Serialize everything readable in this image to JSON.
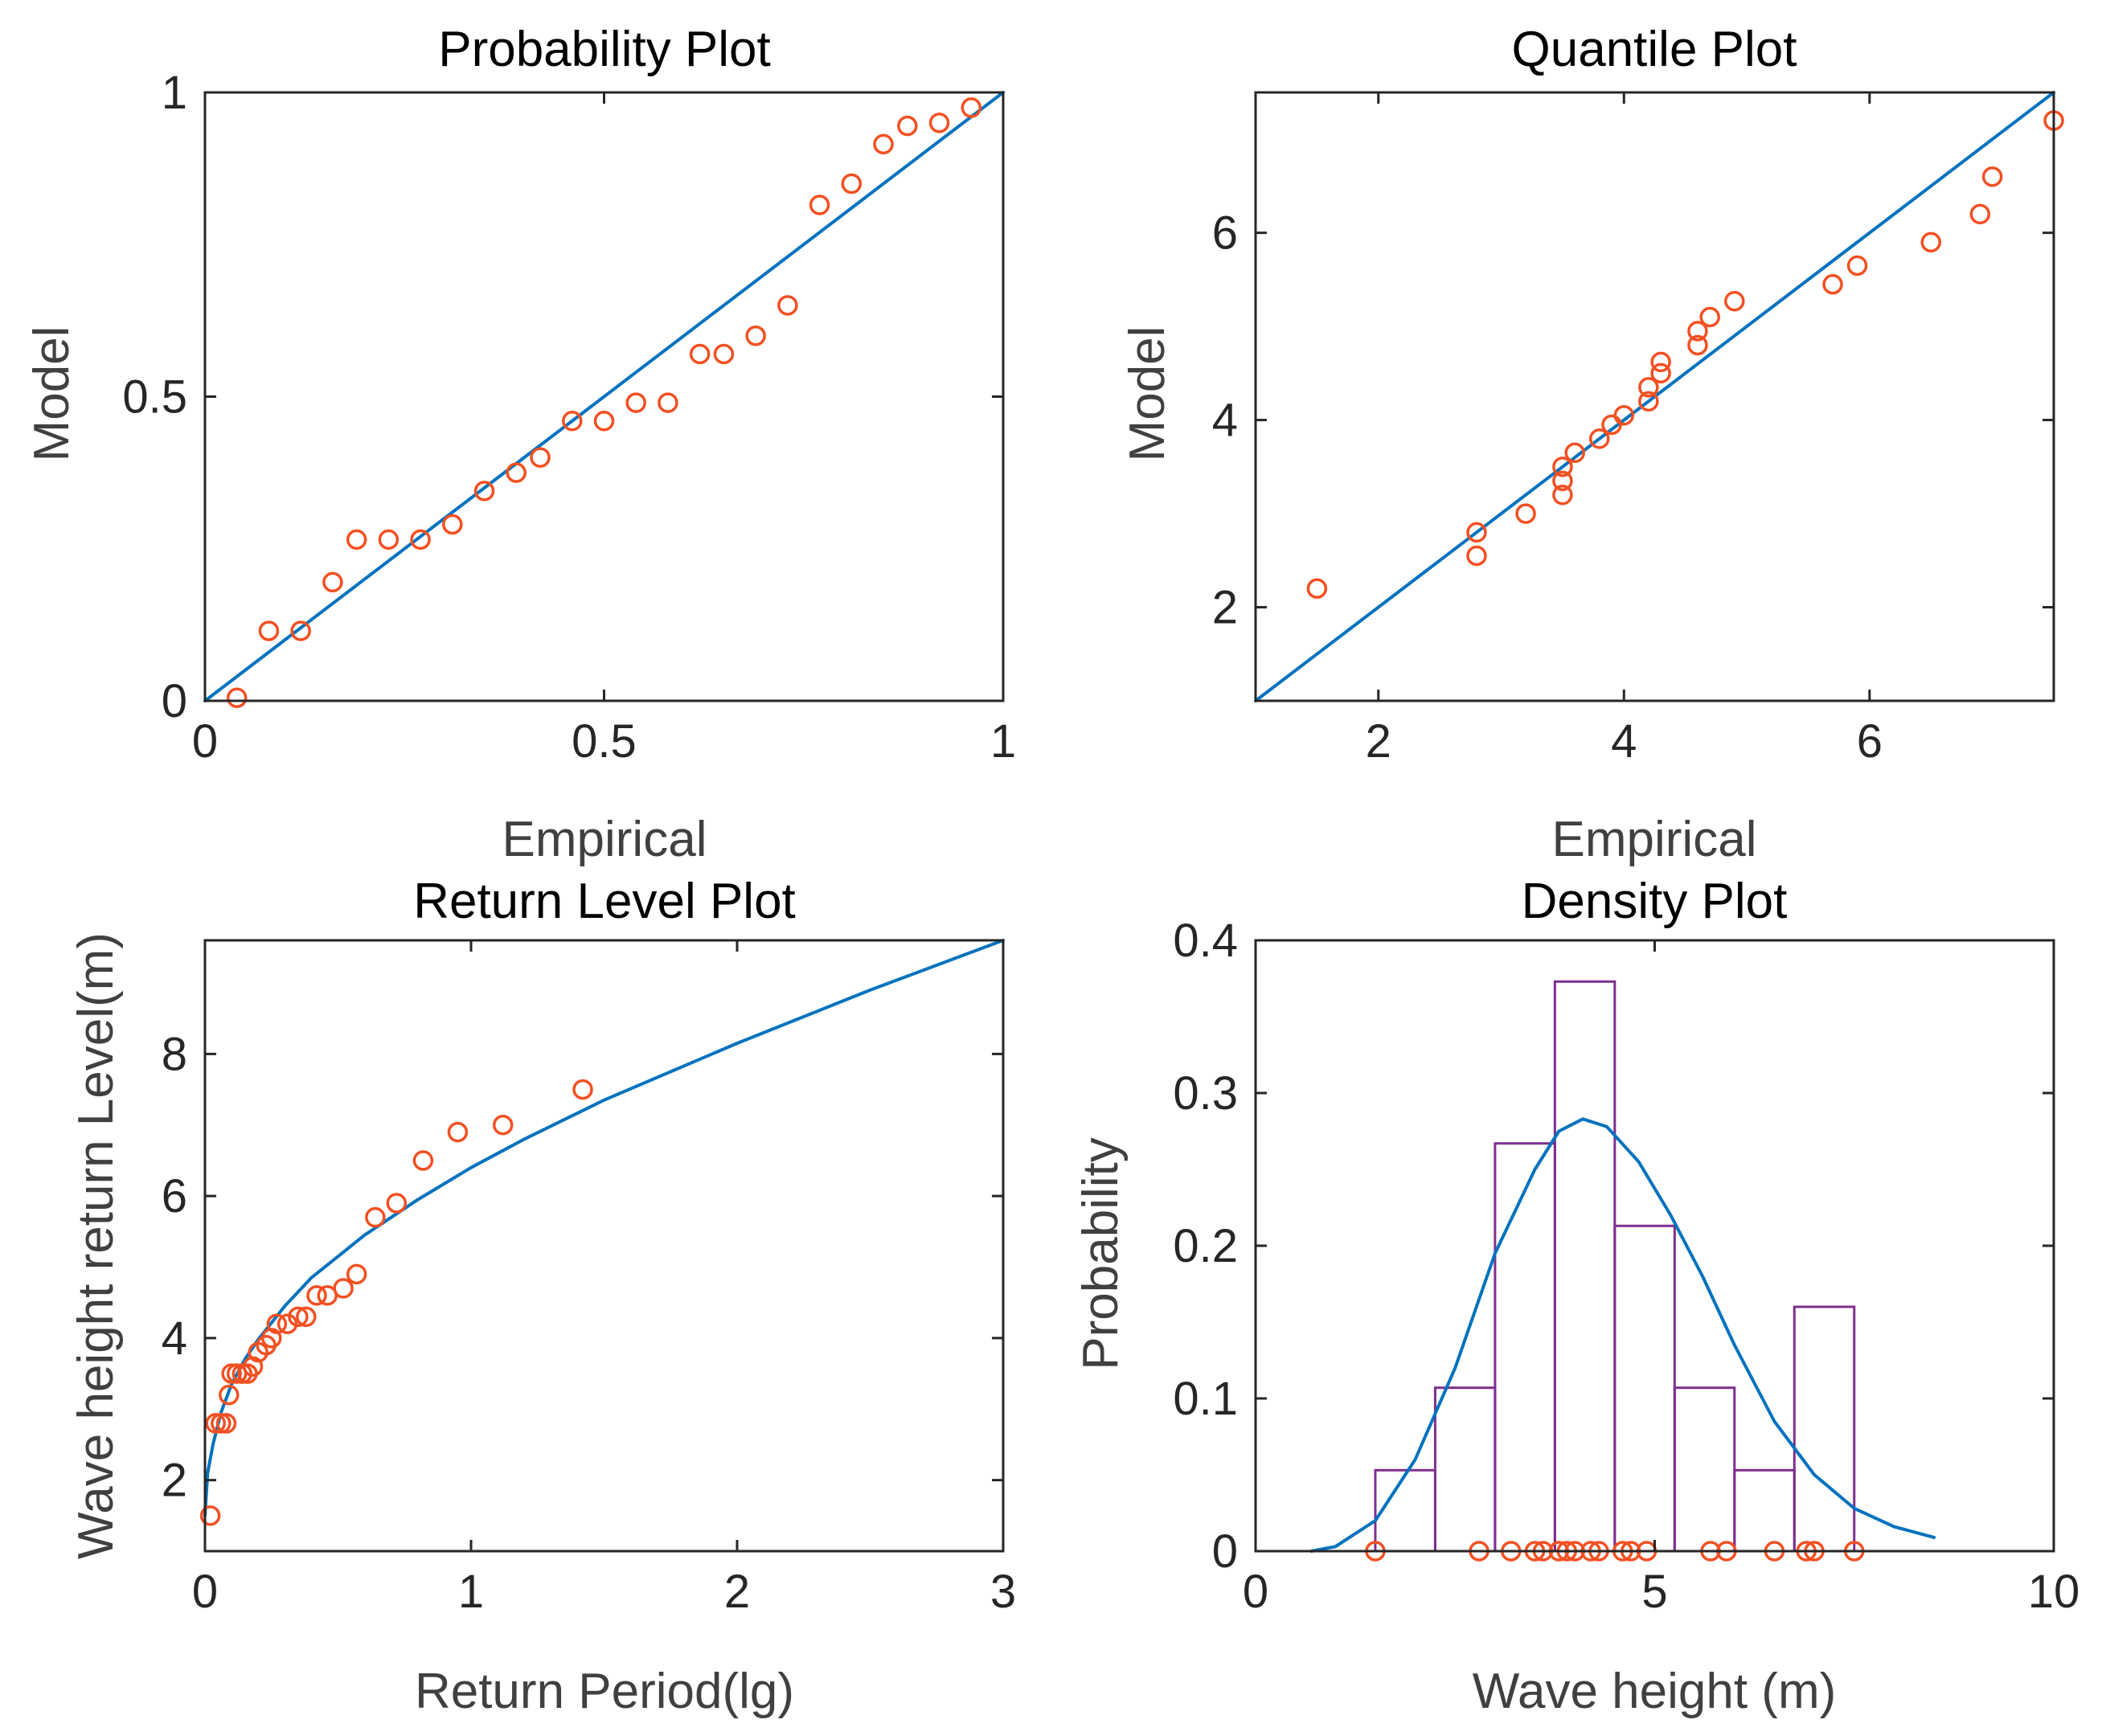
{
  "colors": {
    "axes": "#262626",
    "line": "#0072BD",
    "points": "#F25022",
    "bars": "#7E2F8E",
    "background": "#ffffff"
  },
  "chart_data": [
    {
      "id": "prob",
      "type": "scatter",
      "title": "Probability Plot",
      "xlabel": "Empirical",
      "ylabel": "Model",
      "xlim": [
        0,
        1
      ],
      "ylim": [
        0,
        1
      ],
      "xticks": [
        0,
        0.5,
        1
      ],
      "xtick_labels": [
        "0",
        "0.5",
        "1"
      ],
      "yticks": [
        0,
        0.5,
        1
      ],
      "ytick_labels": [
        "0",
        "0.5",
        "1"
      ],
      "line": {
        "x": [
          0,
          1
        ],
        "y": [
          0,
          1
        ]
      },
      "points": {
        "x": [
          0.04,
          0.08,
          0.12,
          0.16,
          0.19,
          0.23,
          0.27,
          0.31,
          0.35,
          0.39,
          0.42,
          0.46,
          0.5,
          0.54,
          0.58,
          0.62,
          0.65,
          0.69,
          0.73,
          0.77,
          0.81,
          0.85,
          0.88,
          0.92,
          0.96
        ],
        "y": [
          0.005,
          0.115,
          0.115,
          0.195,
          0.265,
          0.265,
          0.265,
          0.29,
          0.345,
          0.375,
          0.4,
          0.46,
          0.46,
          0.49,
          0.49,
          0.57,
          0.57,
          0.6,
          0.65,
          0.815,
          0.85,
          0.915,
          0.945,
          0.95,
          0.975
        ]
      }
    },
    {
      "id": "quant",
      "type": "scatter",
      "title": "Quantile Plot",
      "xlabel": "Empirical",
      "ylabel": "Model",
      "xlim": [
        1,
        7.5
      ],
      "ylim": [
        1,
        7.5
      ],
      "xticks": [
        2,
        4,
        6
      ],
      "xtick_labels": [
        "2",
        "4",
        "6"
      ],
      "yticks": [
        2,
        4,
        6
      ],
      "ytick_labels": [
        "2",
        "4",
        "6"
      ],
      "line": {
        "x": [
          1,
          7.5
        ],
        "y": [
          1,
          7.5
        ]
      },
      "points": {
        "x": [
          1.5,
          2.8,
          2.8,
          3.2,
          3.5,
          3.5,
          3.5,
          3.6,
          3.8,
          3.9,
          4.0,
          4.2,
          4.2,
          4.3,
          4.3,
          4.6,
          4.6,
          4.7,
          4.9,
          5.7,
          5.9,
          6.5,
          6.9,
          7.0,
          7.5
        ],
        "y": [
          2.2,
          2.55,
          2.8,
          3.0,
          3.2,
          3.35,
          3.5,
          3.65,
          3.8,
          3.95,
          4.05,
          4.2,
          4.35,
          4.5,
          4.62,
          4.8,
          4.95,
          5.1,
          5.27,
          5.45,
          5.65,
          5.9,
          6.2,
          6.6,
          7.2
        ]
      }
    },
    {
      "id": "ret",
      "type": "line",
      "title": "Return Level Plot",
      "xlabel": "Return Period(lg)",
      "ylabel": "Wave height return Level(m)",
      "xlim": [
        0,
        3
      ],
      "ylim": [
        1,
        9.6
      ],
      "xticks": [
        0,
        1,
        2,
        3
      ],
      "xtick_labels": [
        "0",
        "1",
        "2",
        "3"
      ],
      "yticks": [
        2,
        4,
        6,
        8
      ],
      "ytick_labels": [
        "2",
        "4",
        "6",
        "8"
      ],
      "curve": {
        "x": [
          0,
          0.01,
          0.03,
          0.06,
          0.1,
          0.15,
          0.2,
          0.3,
          0.4,
          0.5,
          0.6,
          0.7,
          0.8,
          1.0,
          1.2,
          1.5,
          2.0,
          2.5,
          3.0
        ],
        "y": [
          1.5,
          2.1,
          2.5,
          2.95,
          3.35,
          3.7,
          3.98,
          4.45,
          4.85,
          5.15,
          5.45,
          5.7,
          5.95,
          6.4,
          6.8,
          7.35,
          8.15,
          8.9,
          9.6
        ]
      },
      "points": {
        "x": [
          0.02,
          0.04,
          0.06,
          0.08,
          0.09,
          0.1,
          0.12,
          0.14,
          0.16,
          0.18,
          0.2,
          0.23,
          0.25,
          0.27,
          0.31,
          0.35,
          0.38,
          0.42,
          0.46,
          0.52,
          0.57,
          0.64,
          0.72,
          0.82,
          0.95,
          1.12,
          1.42
        ],
        "y": [
          1.5,
          2.8,
          2.8,
          2.8,
          3.2,
          3.5,
          3.5,
          3.5,
          3.5,
          3.6,
          3.8,
          3.9,
          4.0,
          4.2,
          4.2,
          4.3,
          4.3,
          4.6,
          4.6,
          4.7,
          4.9,
          5.7,
          5.9,
          6.5,
          6.9,
          7.0,
          7.5
        ]
      }
    },
    {
      "id": "dens",
      "type": "bar",
      "title": "Density Plot",
      "xlabel": "Wave height (m)",
      "ylabel": "Probability",
      "xlim": [
        0,
        10
      ],
      "ylim": [
        0,
        0.4
      ],
      "xticks": [
        0,
        5,
        10
      ],
      "xtick_labels": [
        "0",
        "5",
        "10"
      ],
      "yticks": [
        0,
        0.1,
        0.2,
        0.3,
        0.4
      ],
      "ytick_labels": [
        "0",
        "0.1",
        "0.2",
        "0.3",
        "0.4"
      ],
      "bin_width": 0.75,
      "bins": [
        {
          "x0": 1.5,
          "value": 0.053
        },
        {
          "x0": 2.25,
          "value": 0.107
        },
        {
          "x0": 3.0,
          "value": 0.267
        },
        {
          "x0": 3.75,
          "value": 0.373
        },
        {
          "x0": 4.5,
          "value": 0.213
        },
        {
          "x0": 5.25,
          "value": 0.107
        },
        {
          "x0": 6.0,
          "value": 0.053
        },
        {
          "x0": 6.75,
          "value": 0.16
        }
      ],
      "curve": {
        "x": [
          0.7,
          1.0,
          1.5,
          2.0,
          2.5,
          3.0,
          3.5,
          3.8,
          4.1,
          4.4,
          4.8,
          5.2,
          5.6,
          6.0,
          6.5,
          7.0,
          7.5,
          8.0,
          8.5
        ],
        "y": [
          0.0,
          0.003,
          0.02,
          0.06,
          0.12,
          0.195,
          0.25,
          0.275,
          0.283,
          0.278,
          0.255,
          0.22,
          0.18,
          0.135,
          0.085,
          0.05,
          0.028,
          0.016,
          0.009
        ]
      },
      "points": {
        "x": [
          1.5,
          2.8,
          3.2,
          3.5,
          3.6,
          3.8,
          3.9,
          4.0,
          4.2,
          4.3,
          4.6,
          4.7,
          4.9,
          5.7,
          5.9,
          6.5,
          6.9,
          7.0,
          7.5
        ],
        "y": [
          0,
          0,
          0,
          0,
          0,
          0,
          0,
          0,
          0,
          0,
          0,
          0,
          0,
          0,
          0,
          0,
          0,
          0,
          0
        ]
      }
    }
  ]
}
